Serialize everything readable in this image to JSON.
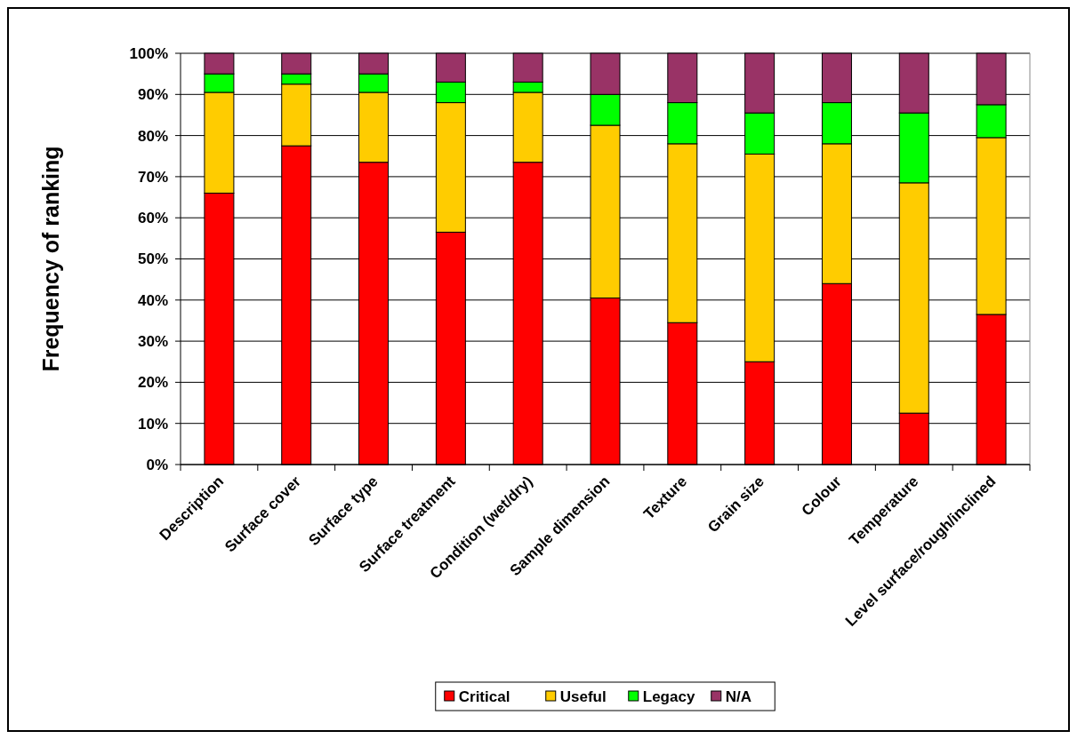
{
  "chart_data": {
    "type": "bar",
    "stacked": true,
    "ylabel": "Frequency of ranking",
    "categories": [
      "Description",
      "Surface cover",
      "Surface type",
      "Surface treatment",
      "Condition (wet/dry)",
      "Sample dimension",
      "Texture",
      "Grain size",
      "Colour",
      "Temperature",
      "Level surface/rough/inclined"
    ],
    "series": [
      {
        "name": "Critical",
        "color": "#ff0000",
        "values": [
          66,
          77.5,
          73.5,
          56.5,
          73.5,
          40.5,
          34.5,
          25,
          44,
          12.5,
          36.5
        ]
      },
      {
        "name": "Useful",
        "color": "#ffcc00",
        "values": [
          24.5,
          15,
          17,
          31.5,
          17,
          42,
          43.5,
          50.5,
          34,
          56,
          43
        ]
      },
      {
        "name": "Legacy",
        "color": "#00ff00",
        "values": [
          4.5,
          2.5,
          4.5,
          5,
          2.5,
          7.5,
          10,
          10,
          10,
          17,
          8
        ]
      },
      {
        "name": "N/A",
        "color": "#993366",
        "values": [
          5,
          5,
          5,
          7,
          7,
          10,
          12,
          14.5,
          12,
          14.5,
          12.5
        ]
      }
    ],
    "ylim": [
      0,
      100
    ],
    "yticks": [
      {
        "value": 0,
        "label": "0%"
      },
      {
        "value": 10,
        "label": "10%"
      },
      {
        "value": 20,
        "label": "20%"
      },
      {
        "value": 30,
        "label": "30%"
      },
      {
        "value": 40,
        "label": "40%"
      },
      {
        "value": 50,
        "label": "50%"
      },
      {
        "value": 60,
        "label": "60%"
      },
      {
        "value": 70,
        "label": "70%"
      },
      {
        "value": 80,
        "label": "80%"
      },
      {
        "value": 90,
        "label": "90%"
      },
      {
        "value": 100,
        "label": "100%"
      }
    ],
    "grid": "y",
    "legend": "bottom"
  }
}
